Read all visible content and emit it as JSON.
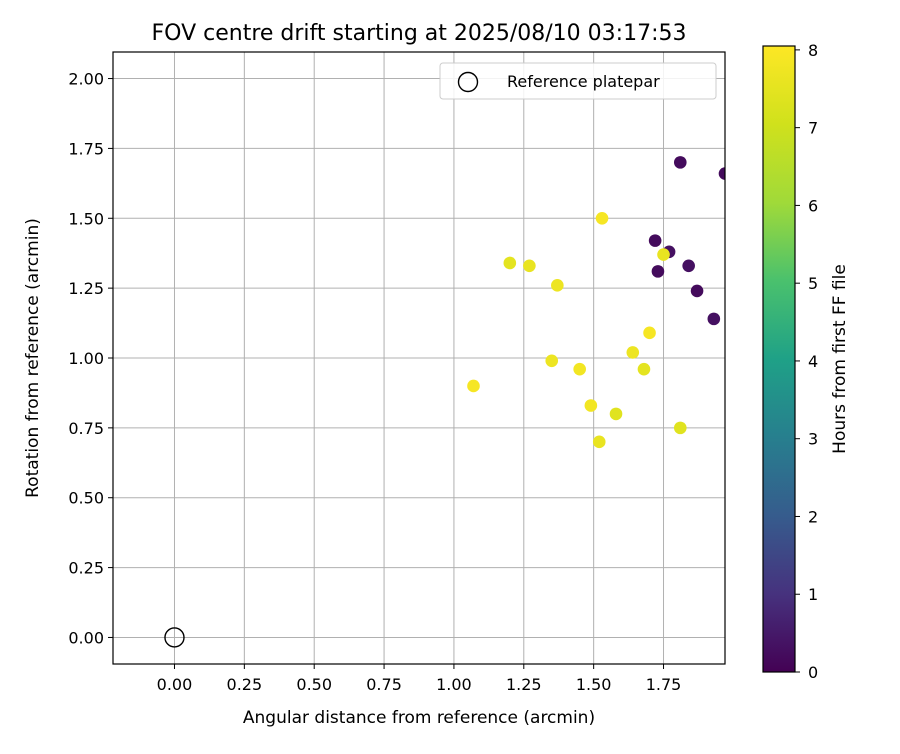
{
  "chart_data": {
    "type": "scatter",
    "title": "FOV centre drift starting at 2025/08/10 03:17:53",
    "xlabel": "Angular distance from reference (arcmin)",
    "ylabel": "Rotation from reference (arcmin)",
    "xlim": [
      -0.22,
      1.97
    ],
    "ylim": [
      -0.095,
      2.095
    ],
    "xticks": [
      0.0,
      0.25,
      0.5,
      0.75,
      1.0,
      1.25,
      1.5,
      1.75
    ],
    "xtick_labels": [
      "0.00",
      "0.25",
      "0.50",
      "0.75",
      "1.00",
      "1.25",
      "1.50",
      "1.75"
    ],
    "yticks": [
      0.0,
      0.25,
      0.5,
      0.75,
      1.0,
      1.25,
      1.5,
      1.75,
      2.0
    ],
    "ytick_labels": [
      "0.00",
      "0.25",
      "0.50",
      "0.75",
      "1.00",
      "1.25",
      "1.50",
      "1.75",
      "2.00"
    ],
    "grid": true,
    "legend": {
      "position": "top-right",
      "entries": [
        "Reference platepar"
      ]
    },
    "reference_point": {
      "x": 0.0,
      "y": 0.0,
      "label": "Reference platepar"
    },
    "colorbar": {
      "label": "Hours from first FF file",
      "colormap": "viridis",
      "range": [
        0,
        8.05
      ],
      "ticks": [
        0,
        1,
        2,
        3,
        4,
        5,
        6,
        7,
        8
      ],
      "tick_labels": [
        "0",
        "1",
        "2",
        "3",
        "4",
        "5",
        "6",
        "7",
        "8"
      ]
    },
    "points": [
      {
        "x": 1.07,
        "y": 0.9,
        "hours": 7.9
      },
      {
        "x": 1.2,
        "y": 1.34,
        "hours": 7.5
      },
      {
        "x": 1.27,
        "y": 1.33,
        "hours": 7.6
      },
      {
        "x": 1.37,
        "y": 1.26,
        "hours": 7.7
      },
      {
        "x": 1.35,
        "y": 0.99,
        "hours": 7.7
      },
      {
        "x": 1.45,
        "y": 0.96,
        "hours": 7.8
      },
      {
        "x": 1.49,
        "y": 0.83,
        "hours": 7.8
      },
      {
        "x": 1.52,
        "y": 0.7,
        "hours": 7.6
      },
      {
        "x": 1.53,
        "y": 1.5,
        "hours": 7.9
      },
      {
        "x": 1.58,
        "y": 0.8,
        "hours": 7.4
      },
      {
        "x": 1.64,
        "y": 1.02,
        "hours": 7.7
      },
      {
        "x": 1.68,
        "y": 0.96,
        "hours": 7.5
      },
      {
        "x": 1.7,
        "y": 1.09,
        "hours": 7.9
      },
      {
        "x": 1.72,
        "y": 1.42,
        "hours": 0.2
      },
      {
        "x": 1.73,
        "y": 1.31,
        "hours": 0.2
      },
      {
        "x": 1.77,
        "y": 1.38,
        "hours": 0.3
      },
      {
        "x": 1.75,
        "y": 1.37,
        "hours": 7.6
      },
      {
        "x": 1.81,
        "y": 1.7,
        "hours": 0.2
      },
      {
        "x": 1.81,
        "y": 0.75,
        "hours": 7.4
      },
      {
        "x": 1.84,
        "y": 1.33,
        "hours": 0.3
      },
      {
        "x": 1.87,
        "y": 1.24,
        "hours": 0.2
      },
      {
        "x": 1.93,
        "y": 1.14,
        "hours": 0.3
      },
      {
        "x": 1.97,
        "y": 1.66,
        "hours": 0.2
      }
    ]
  }
}
